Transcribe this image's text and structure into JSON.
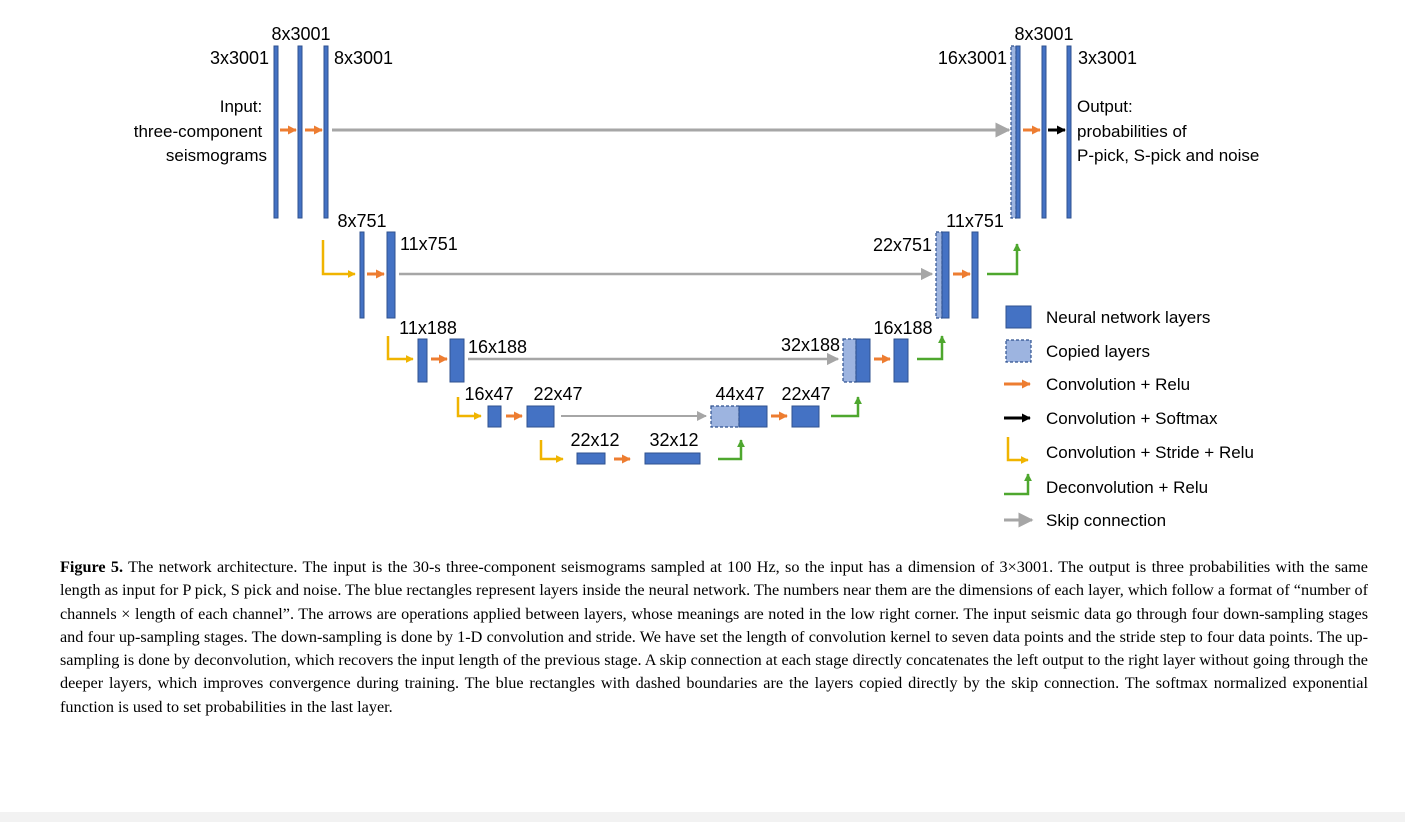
{
  "diagram": {
    "dims": {
      "l1_c1": "3x3001",
      "l1_c2": "8x3001",
      "l1_c3": "8x3001",
      "l1_r_copy": "16x3001",
      "l1_r_c1": "8x3001",
      "l1_r_c2": "3x3001",
      "l2_c1": "8x751",
      "l2_c2": "11x751",
      "l2_r_copy": "22x751",
      "l2_r_c1": "11x751",
      "l3_c1": "11x188",
      "l3_c2": "16x188",
      "l3_r_copy": "32x188",
      "l3_r_c1": "16x188",
      "l4_c1": "16x47",
      "l4_c2": "22x47",
      "l4_r_copy": "44x47",
      "l4_r_c1": "22x47",
      "l5_c1": "22x12",
      "l5_c2": "32x12"
    },
    "input_label": [
      "Input:",
      "three-component",
      "seismograms"
    ],
    "output_label": [
      "Output:",
      "probabilities of",
      "P-pick, S-pick and noise"
    ],
    "colors": {
      "layer": "#4472C4",
      "copied": "#9DB4E0",
      "conv_relu": "#ED7D31",
      "conv_softmax": "#000000",
      "stride": "#F0B400",
      "deconv": "#4EA72E",
      "skip": "#A6A6A6"
    }
  },
  "legend": {
    "items": [
      {
        "label": "Neural network layers",
        "icon": "neural-layer-swatch"
      },
      {
        "label": "Copied layers",
        "icon": "copied-layer-swatch"
      },
      {
        "label": "Convolution + Relu",
        "icon": "orange-arrow-icon"
      },
      {
        "label": "Convolution + Softmax",
        "icon": "black-arrow-icon"
      },
      {
        "label": "Convolution + Stride + Relu",
        "icon": "yellow-bent-arrow-icon"
      },
      {
        "label": "Deconvolution + Relu",
        "icon": "green-bent-arrow-icon"
      },
      {
        "label": "Skip connection",
        "icon": "gray-arrow-icon"
      }
    ]
  },
  "caption": {
    "label": "Figure 5.",
    "text": "The network architecture. The input is the 30-s three-component seismograms sampled at 100 Hz, so the input has a dimension of 3×3001. The output is three probabilities with the same length as input for P pick, S pick and noise. The blue rectangles represent layers inside the neural network. The numbers near them are the dimensions of each layer, which follow a format of “number of channels × length of each channel”. The arrows are operations applied between layers, whose meanings are noted in the low right corner. The input seismic data go through four down-sampling stages and four up-sampling stages. The down-sampling is done by 1-D convolution and stride. We have set the length of convolution kernel to seven data points and the stride step to four data points. The up-sampling is done by deconvolution, which recovers the input length of the previous stage. A skip connection at each stage directly concatenates the left output to the right layer without going through the deeper layers, which improves convergence during training. The blue rectangles with dashed boundaries are the layers copied directly by the skip connection. The softmax normalized exponential function is used to set probabilities in the last layer."
  }
}
